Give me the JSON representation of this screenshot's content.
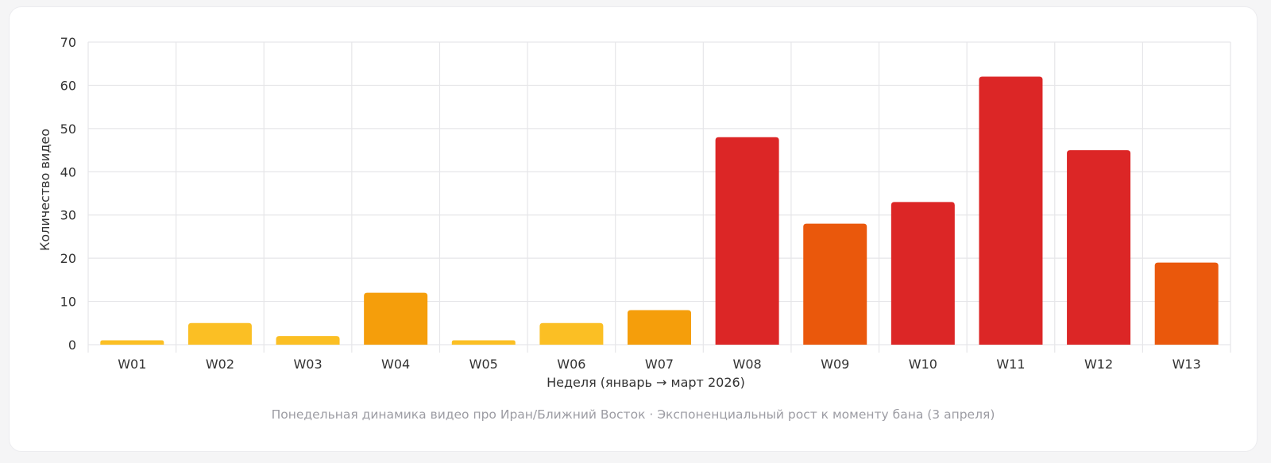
{
  "chart_data": {
    "type": "bar",
    "categories": [
      "W01",
      "W02",
      "W03",
      "W04",
      "W05",
      "W06",
      "W07",
      "W08",
      "W09",
      "W10",
      "W11",
      "W12",
      "W13"
    ],
    "series": [
      {
        "values": [
          1,
          5,
          2,
          12,
          1,
          5,
          8,
          48,
          28,
          33,
          62,
          45,
          19
        ],
        "colors": [
          "#fbbf24",
          "#fbbf24",
          "#fbbf24",
          "#f59e0b",
          "#fbbf24",
          "#fbbf24",
          "#f59e0b",
          "#dc2626",
          "#ea580c",
          "#dc2626",
          "#dc2626",
          "#dc2626",
          "#ea580c"
        ]
      }
    ],
    "xlabel": "Неделя (январь → март 2026)",
    "ylabel": "Количество видео",
    "ylim": [
      0,
      70
    ],
    "yticks": [
      0,
      10,
      20,
      30,
      40,
      50,
      60,
      70
    ],
    "grid": true,
    "legend": "none"
  },
  "caption": "Понедельная динамика видео про Иран/Ближний Восток · Экспоненциальный рост к моменту бана (3 апреля)"
}
